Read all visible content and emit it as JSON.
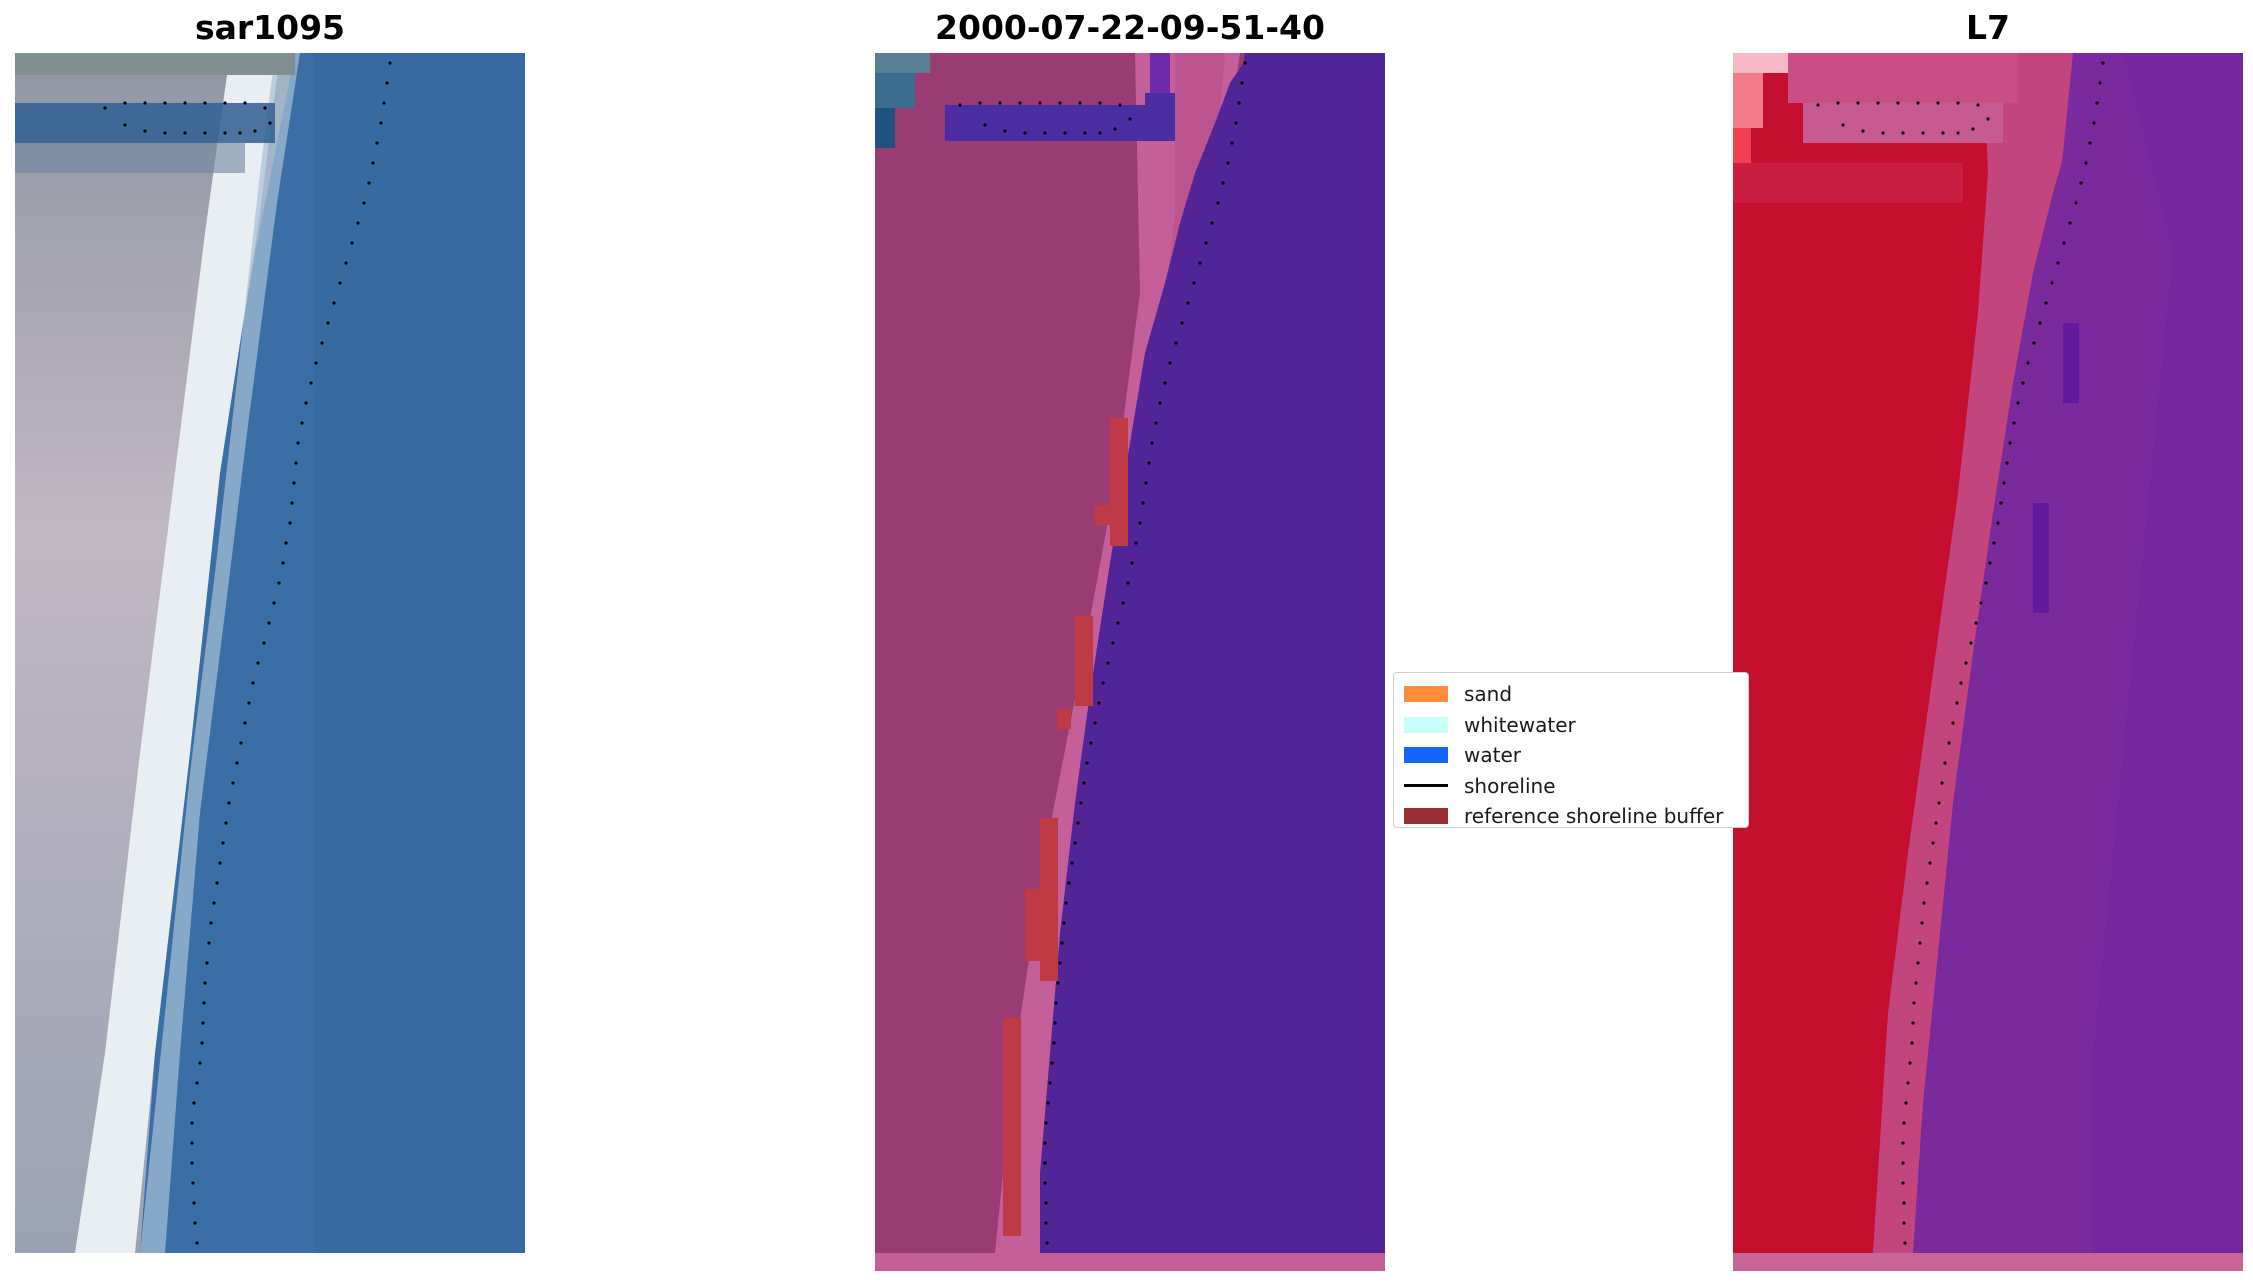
{
  "panels": {
    "left": {
      "title": "sar1095"
    },
    "middle": {
      "title": "2000-07-22-09-51-40"
    },
    "right": {
      "title": "L7"
    }
  },
  "legend": {
    "items": [
      {
        "label": "sand",
        "color": "#ff8c3c",
        "kind": "patch"
      },
      {
        "label": "whitewater",
        "color": "#c8fff8",
        "kind": "patch"
      },
      {
        "label": "water",
        "color": "#1464ff",
        "kind": "patch"
      },
      {
        "label": "shoreline",
        "color": "#000000",
        "kind": "line"
      },
      {
        "label": "reference shoreline buffer",
        "color": "#993033",
        "kind": "patch"
      }
    ]
  },
  "colors": {
    "rgb_beach": "#b6b4c0",
    "rgb_whitewater": "#eef3f4",
    "rgb_water": "#3b6ea6",
    "classified_water": "#512497",
    "classified_land": "#9a3c74",
    "classified_beach": "#c45f9a",
    "classified_buffer": "#c03a46",
    "index_land": "#c4102e",
    "index_beach": "#c3457d",
    "index_water": "#7a2a9c",
    "shoreline_dots": "#000000"
  }
}
